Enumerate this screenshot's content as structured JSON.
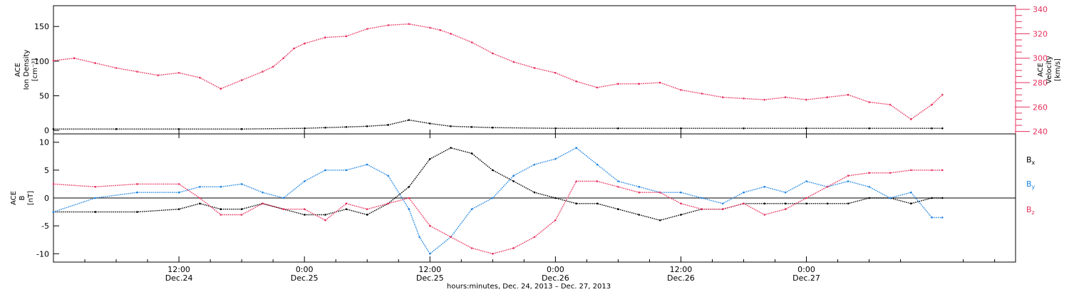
{
  "chart_data": [
    {
      "type": "scatter",
      "panel": "ion-density-velocity",
      "ylabel_left": [
        "ACE",
        "Ion Density",
        "[cm⁻³]"
      ],
      "ylabel_right": [
        "ACE",
        "Velocity",
        "[km/s]"
      ],
      "yticks_left": [
        "0",
        "50",
        "100",
        "150"
      ],
      "ylim_left": [
        -5,
        180
      ],
      "yticks_right": [
        "240",
        "260",
        "280",
        "300",
        "320",
        "340"
      ],
      "ylim_right": [
        238,
        343
      ],
      "colors": {
        "density": "#000000",
        "velocity": "#e8315c"
      },
      "series": [
        {
          "axis": "left",
          "role": "density",
          "x": [
            0,
            6,
            12,
            18,
            24,
            26,
            28,
            30,
            32,
            34,
            36,
            38,
            40,
            42,
            48,
            54,
            60,
            66,
            72,
            78,
            84,
            85
          ],
          "values": [
            2,
            2,
            2,
            2,
            3,
            4,
            5,
            6,
            8,
            15,
            10,
            6,
            5,
            4,
            3,
            3,
            3,
            3,
            3,
            3,
            3,
            3
          ]
        },
        {
          "axis": "right",
          "role": "velocity",
          "x": [
            0,
            2,
            4,
            6,
            8,
            10,
            12,
            14,
            16,
            18,
            20,
            21,
            22,
            23,
            24,
            26,
            28,
            30,
            32,
            34,
            36,
            37,
            38,
            40,
            42,
            44,
            46,
            48,
            50,
            52,
            54,
            56,
            58,
            60,
            62,
            64,
            66,
            68,
            70,
            72,
            74,
            76,
            78,
            80,
            82,
            84,
            85
          ],
          "values": [
            298,
            300,
            296,
            292,
            289,
            286,
            288,
            284,
            275,
            282,
            289,
            293,
            300,
            308,
            312,
            317,
            318,
            324,
            327,
            328,
            325,
            323,
            320,
            313,
            304,
            297,
            292,
            288,
            281,
            276,
            279,
            279,
            280,
            274,
            271,
            268,
            267,
            266,
            268,
            266,
            268,
            270,
            264,
            262,
            250,
            262,
            270
          ]
        }
      ]
    },
    {
      "type": "scatter",
      "panel": "magnetic-field",
      "ylabel": [
        "ACE",
        "B",
        "[nT]"
      ],
      "yticks": [
        "-10",
        "-5",
        "0",
        "5",
        "10"
      ],
      "ylim": [
        -11.5,
        11.5
      ],
      "zero_line": true,
      "colors": {
        "Bx": "#000000",
        "By": "#1f84e2",
        "Bz": "#e8315c"
      },
      "legend": [
        "Bx",
        "By",
        "Bz"
      ],
      "series": [
        {
          "name": "Bx",
          "x": [
            0,
            4,
            8,
            12,
            14,
            16,
            18,
            20,
            22,
            24,
            26,
            28,
            30,
            32,
            34,
            36,
            38,
            40,
            42,
            44,
            46,
            48,
            50,
            52,
            54,
            56,
            58,
            60,
            62,
            64,
            66,
            68,
            70,
            72,
            74,
            76,
            78,
            80,
            82,
            84,
            85
          ],
          "values": [
            -2.5,
            -2.5,
            -2.5,
            -2,
            -1,
            -2,
            -2,
            -1,
            -2,
            -3,
            -3,
            -2,
            -3,
            -1,
            2,
            7,
            9,
            8,
            5,
            3,
            1,
            0,
            -1,
            -1,
            -2,
            -3,
            -4,
            -3,
            -2,
            -2,
            -1,
            -1,
            -1,
            -1,
            -1,
            -1,
            0,
            0,
            -1,
            0,
            0
          ]
        },
        {
          "name": "By",
          "x": [
            0,
            4,
            8,
            12,
            14,
            16,
            18,
            20,
            22,
            24,
            26,
            28,
            30,
            32,
            34,
            35,
            36,
            38,
            40,
            42,
            44,
            46,
            48,
            50,
            52,
            54,
            56,
            58,
            60,
            62,
            64,
            66,
            68,
            70,
            72,
            74,
            76,
            78,
            80,
            82,
            84,
            85
          ],
          "values": [
            -2.5,
            0,
            1,
            1,
            2,
            2,
            2.5,
            1,
            0,
            3,
            5,
            5,
            6,
            4,
            -2,
            -7,
            -10,
            -7,
            -2,
            0,
            4,
            6,
            7,
            9,
            6,
            3,
            2,
            1,
            1,
            0,
            -1,
            1,
            2,
            1,
            3,
            2,
            3,
            2,
            0,
            1,
            -3.5,
            -3.5
          ]
        },
        {
          "name": "Bz",
          "x": [
            0,
            4,
            8,
            12,
            14,
            16,
            18,
            20,
            22,
            24,
            26,
            28,
            30,
            32,
            34,
            36,
            38,
            40,
            42,
            44,
            46,
            48,
            50,
            52,
            54,
            56,
            58,
            60,
            62,
            64,
            66,
            68,
            70,
            72,
            74,
            76,
            78,
            80,
            82,
            84,
            85
          ],
          "values": [
            2.5,
            2,
            2.5,
            2.5,
            0,
            -3,
            -3,
            -1,
            -2,
            -2,
            -4,
            -1,
            -2,
            -1,
            0,
            -5,
            -7,
            -9,
            -10,
            -9,
            -7,
            -4,
            3,
            3,
            2,
            1,
            1,
            -1,
            -2,
            -2,
            -1,
            -3,
            -2,
            0,
            2,
            4,
            4.5,
            4.5,
            5,
            5,
            5
          ]
        }
      ]
    }
  ],
  "xaxis": {
    "range_hours": [
      0,
      92
    ],
    "ticks": [
      {
        "x": 12,
        "time": "12:00",
        "day": "Dec.24"
      },
      {
        "x": 24,
        "time": "0:00",
        "day": "Dec.25"
      },
      {
        "x": 36,
        "time": "12:00",
        "day": "Dec.25"
      },
      {
        "x": 48,
        "time": "0:00",
        "day": "Dec.26"
      },
      {
        "x": 60,
        "time": "12:00",
        "day": "Dec.26"
      },
      {
        "x": 72,
        "time": "0:00",
        "day": "Dec.27"
      }
    ],
    "title": "hours:minutes, Dec. 24, 2013 – Dec. 27, 2013"
  }
}
